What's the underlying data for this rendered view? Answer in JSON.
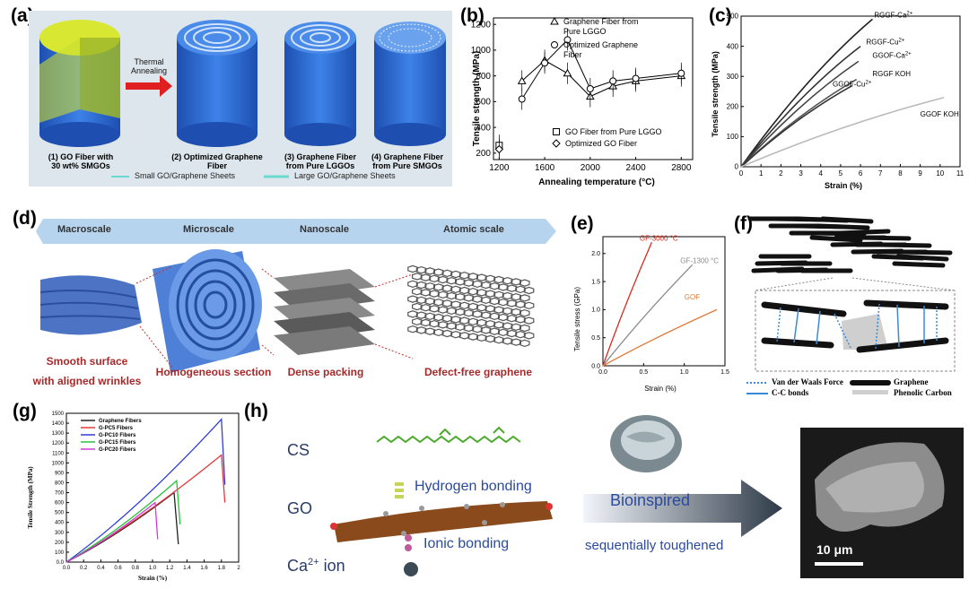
{
  "panel_labels": {
    "a": "(a)",
    "b": "(b)",
    "c": "(c)",
    "d": "(d)",
    "e": "(e)",
    "f": "(f)",
    "g": "(g)",
    "h": "(h)"
  },
  "panel_a": {
    "arrow_label_1": "Thermal",
    "arrow_label_2": "Annealing",
    "items": [
      {
        "line1": "(1) GO Fiber with",
        "line2": "30 wt% SMGOs"
      },
      {
        "line1": "(2) Optimized Graphene",
        "line2": "Fiber"
      },
      {
        "line1": "(3) Graphene Fiber",
        "line2": "from Pure LGGOs"
      },
      {
        "line1": "(4) Graphene Fiber",
        "line2": "from Pure SMGOs"
      }
    ],
    "legend_small": "Small GO/Graphene Sheets",
    "legend_large": "Large GO/Graphene Sheets",
    "colors": {
      "fiber": "#2f6bd6",
      "top_yellow": "#d8e832",
      "bg": "#dfe8ee"
    }
  },
  "panel_d": {
    "scales": [
      "Macroscale",
      "Microscale",
      "Nanoscale",
      "Atomic scale"
    ],
    "captions": [
      {
        "line1": "Smooth surface",
        "line2": "with aligned wrinkles"
      },
      {
        "line1": "Homogeneous section",
        "line2": ""
      },
      {
        "line1": "Dense packing",
        "line2": ""
      },
      {
        "line1": "Defect-free graphene",
        "line2": ""
      }
    ]
  },
  "panel_f": {
    "legend": [
      "Van der Waals Force",
      "Graphene",
      "C-C bonds",
      "Phenolic Carbon"
    ]
  },
  "panel_h": {
    "cs": "CS",
    "go": "GO",
    "ca_base": "Ca",
    "ca_sup": "2+",
    "ca_rest": " ion",
    "hydrogen": "Hydrogen bonding",
    "ionic": "Ionic bonding",
    "bioinspired": "Bioinspired",
    "toughened": "sequentially toughened",
    "scale_bar": "10 μm"
  },
  "chart_data": [
    {
      "panel": "b",
      "type": "line",
      "xlabel": "Annealing temperature (°C)",
      "ylabel": "Tensile strength (MPa)",
      "xlim": [
        1150,
        2900
      ],
      "ylim": [
        150,
        1250
      ],
      "xticks": [
        1200,
        1600,
        2000,
        2400,
        2800
      ],
      "yticks": [
        200,
        400,
        600,
        800,
        1000,
        1200
      ],
      "series": [
        {
          "name": "Graphene Fiber from Pure LGGO",
          "marker": "triangle",
          "x": [
            1400,
            1600,
            1800,
            2000,
            2200,
            2400,
            2800
          ],
          "y": [
            760,
            920,
            820,
            640,
            720,
            760,
            800
          ]
        },
        {
          "name": "Optimized Graphene Fiber",
          "marker": "circle-open",
          "x": [
            1400,
            1600,
            1800,
            2000,
            2200,
            2400,
            2800
          ],
          "y": [
            620,
            900,
            1080,
            700,
            760,
            780,
            820
          ]
        },
        {
          "name": "GO Fiber from Pure LGGO",
          "marker": "square",
          "x": [
            1200
          ],
          "y": [
            260
          ]
        },
        {
          "name": "Optimized GO Fiber",
          "marker": "diamond",
          "x": [
            1200
          ],
          "y": [
            230
          ]
        }
      ],
      "legend_top": [
        "Graphene Fiber from Pure LGGO",
        "Optimized Graphene Fiber"
      ],
      "legend_bottom": [
        "GO Fiber from Pure LGGO",
        "Optimized GO Fiber"
      ]
    },
    {
      "panel": "c",
      "type": "line",
      "xlabel": "Strain (%)",
      "ylabel": "Tensile strength (MPa)",
      "xlim": [
        0,
        11
      ],
      "ylim": [
        0,
        500
      ],
      "xticks": [
        0,
        1,
        2,
        3,
        4,
        5,
        6,
        7,
        8,
        9,
        10,
        11
      ],
      "yticks": [
        0,
        100,
        200,
        300,
        400,
        500
      ],
      "series": [
        {
          "label_base": "RGGF-Ca",
          "label_sup": "2+",
          "end": [
            6.6,
            490
          ]
        },
        {
          "label_base": "RGGF-Cu",
          "label_sup": "2+",
          "end": [
            6.0,
            400
          ]
        },
        {
          "label_base": "GGOF-Ca",
          "label_sup": "2+",
          "end": [
            5.9,
            350
          ]
        },
        {
          "label_base": "RGGF KOH",
          "label_sup": "",
          "end": [
            5.8,
            290
          ]
        },
        {
          "label_base": "GGOF-Cu",
          "label_sup": "2+",
          "end": [
            5.6,
            270
          ]
        },
        {
          "label_base": "GGOF KOH",
          "label_sup": "",
          "end": [
            10.2,
            230
          ]
        }
      ]
    },
    {
      "panel": "e",
      "type": "line",
      "xlabel": "Strain (%)",
      "ylabel": "Tensile stress (GPa)",
      "xlim": [
        0,
        1.5
      ],
      "ylim": [
        0,
        2.3
      ],
      "xticks": [
        0.0,
        0.5,
        1.0,
        1.5
      ],
      "yticks": [
        0.0,
        0.5,
        1.0,
        1.5,
        2.0
      ],
      "series": [
        {
          "name": "GF-3000 °C",
          "end": [
            0.6,
            2.2
          ],
          "color": "#d62b1e"
        },
        {
          "name": "GF-1300 °C",
          "end": [
            1.1,
            1.8
          ],
          "color": "#8a8a8a"
        },
        {
          "name": "GOF",
          "end": [
            1.4,
            1.0
          ],
          "color": "#e07a3a"
        }
      ]
    },
    {
      "panel": "g",
      "type": "line",
      "xlabel": "Strain (%)",
      "ylabel": "Tensile Strength (MPa)",
      "xlim": [
        0,
        2.0
      ],
      "ylim": [
        0,
        1500
      ],
      "xticks": [
        0.0,
        0.2,
        0.4,
        0.6,
        0.8,
        1.0,
        1.2,
        1.4,
        1.6,
        1.8,
        2.0
      ],
      "yticks": [
        0,
        100,
        200,
        300,
        400,
        500,
        600,
        700,
        800,
        900,
        1000,
        1100,
        1200,
        1300,
        1400,
        1500
      ],
      "series": [
        {
          "name": "Graphene Fibers",
          "color": "#222222",
          "peak": [
            1.25,
            700
          ],
          "drop": [
            1.3,
            180
          ]
        },
        {
          "name": "G-PC5 Fibers",
          "color": "#e23a3a",
          "peak": [
            1.8,
            1080
          ],
          "drop": [
            1.84,
            600
          ]
        },
        {
          "name": "G-PC10 Fibers",
          "color": "#2f3fd6",
          "peak": [
            1.8,
            1440
          ],
          "drop": [
            1.84,
            780
          ]
        },
        {
          "name": "G-PC15 Fibers",
          "color": "#28c23a",
          "peak": [
            1.28,
            820
          ],
          "drop": [
            1.32,
            380
          ]
        },
        {
          "name": "G-PC20 Fibers",
          "color": "#d23ad6",
          "peak": [
            1.03,
            600
          ],
          "drop": [
            1.06,
            230
          ]
        }
      ]
    }
  ]
}
